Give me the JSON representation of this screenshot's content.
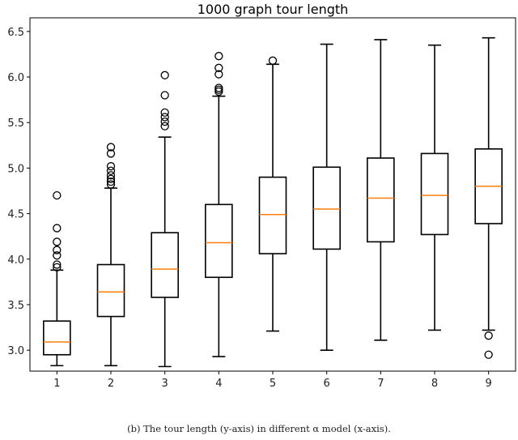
{
  "chart_data": {
    "type": "box",
    "title": "1000 graph tour length",
    "xlabel": "",
    "ylabel": "",
    "categories": [
      "1",
      "2",
      "3",
      "4",
      "5",
      "6",
      "7",
      "8",
      "9"
    ],
    "ylim": [
      2.77,
      6.65
    ],
    "yticks": [
      "3.0",
      "3.5",
      "4.0",
      "4.5",
      "5.0",
      "5.5",
      "6.0",
      "6.5"
    ],
    "grid": false,
    "box_color": "#000000",
    "median_color": "#ff7f0e",
    "boxes": [
      {
        "whisker_low": 2.83,
        "q1": 2.95,
        "median": 3.09,
        "q3": 3.32,
        "whisker_high": 3.88,
        "outliers": [
          4.7,
          4.34,
          4.19,
          4.1,
          4.04,
          3.94,
          3.91
        ]
      },
      {
        "whisker_low": 2.83,
        "q1": 3.37,
        "median": 3.64,
        "q3": 3.94,
        "whisker_high": 4.78,
        "outliers": [
          4.82,
          4.85,
          4.88,
          4.92,
          4.97,
          5.02,
          5.16,
          5.23
        ]
      },
      {
        "whisker_low": 2.82,
        "q1": 3.58,
        "median": 3.89,
        "q3": 4.29,
        "whisker_high": 5.34,
        "outliers": [
          5.46,
          5.51,
          5.56,
          5.61,
          5.8,
          6.02
        ]
      },
      {
        "whisker_low": 2.93,
        "q1": 3.8,
        "median": 4.18,
        "q3": 4.6,
        "whisker_high": 5.79,
        "outliers": [
          5.84,
          5.86,
          5.88,
          6.03,
          6.1,
          6.23
        ]
      },
      {
        "whisker_low": 3.21,
        "q1": 4.06,
        "median": 4.49,
        "q3": 4.9,
        "whisker_high": 6.14,
        "outliers": [
          6.18
        ]
      },
      {
        "whisker_low": 3.0,
        "q1": 4.11,
        "median": 4.55,
        "q3": 5.01,
        "whisker_high": 6.36,
        "outliers": []
      },
      {
        "whisker_low": 3.11,
        "q1": 4.19,
        "median": 4.67,
        "q3": 5.11,
        "whisker_high": 6.41,
        "outliers": []
      },
      {
        "whisker_low": 3.22,
        "q1": 4.27,
        "median": 4.7,
        "q3": 5.16,
        "whisker_high": 6.35,
        "outliers": []
      },
      {
        "whisker_low": 3.22,
        "q1": 4.39,
        "median": 4.8,
        "q3": 5.21,
        "whisker_high": 6.43,
        "outliers": [
          3.16,
          2.95
        ]
      }
    ]
  },
  "caption": "(b)  The tour length (y-axis) in different α model (x-axis)."
}
